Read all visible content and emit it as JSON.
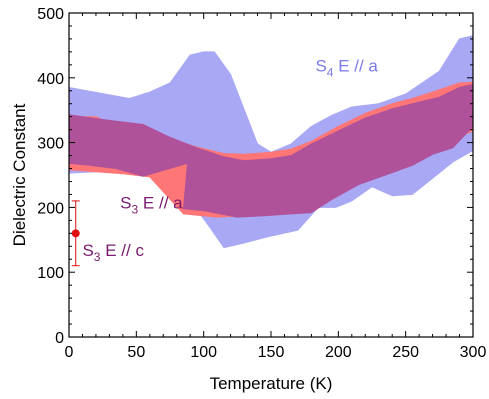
{
  "chart_data": {
    "type": "area",
    "title": "",
    "xlabel": "Temperature (K)",
    "ylabel": "Dielectric Constant",
    "xlim": [
      0,
      300
    ],
    "ylim": [
      0,
      500
    ],
    "xticks": [
      0,
      50,
      100,
      150,
      200,
      250,
      300
    ],
    "yticks": [
      0,
      100,
      200,
      300,
      400,
      500
    ],
    "grid": false,
    "legend": "none",
    "series": [
      {
        "color": "#a8a8f4",
        "label": {
          "main": "S",
          "sub": "4",
          "rest": " E // a",
          "x": 183,
          "y": 410,
          "color": "#7b7be8"
        },
        "upper": [
          [
            0,
            385
          ],
          [
            45,
            368
          ],
          [
            60,
            378
          ],
          [
            75,
            392
          ],
          [
            90,
            435
          ],
          [
            100,
            440
          ],
          [
            108,
            440
          ],
          [
            120,
            405
          ],
          [
            140,
            298
          ],
          [
            150,
            285
          ],
          [
            165,
            298
          ],
          [
            180,
            325
          ],
          [
            195,
            342
          ],
          [
            210,
            355
          ],
          [
            230,
            360
          ],
          [
            250,
            375
          ],
          [
            275,
            410
          ],
          [
            290,
            460
          ],
          [
            300,
            465
          ]
        ],
        "lower": [
          [
            300,
            288
          ],
          [
            285,
            270
          ],
          [
            270,
            245
          ],
          [
            255,
            220
          ],
          [
            240,
            218
          ],
          [
            225,
            232
          ],
          [
            210,
            210
          ],
          [
            198,
            200
          ],
          [
            185,
            200
          ],
          [
            170,
            165
          ],
          [
            148,
            155
          ],
          [
            130,
            145
          ],
          [
            115,
            138
          ],
          [
            105,
            168
          ],
          [
            92,
            205
          ],
          [
            80,
            235
          ],
          [
            60,
            250
          ],
          [
            40,
            258
          ],
          [
            20,
            255
          ],
          [
            0,
            253
          ]
        ]
      },
      {
        "color": "#ff7676",
        "label": null,
        "upper": [
          [
            0,
            340
          ],
          [
            20,
            340
          ],
          [
            35,
            325
          ],
          [
            55,
            325
          ],
          [
            75,
            305
          ],
          [
            95,
            293
          ],
          [
            115,
            283
          ],
          [
            130,
            282
          ],
          [
            150,
            285
          ],
          [
            165,
            290
          ],
          [
            180,
            302
          ],
          [
            200,
            325
          ],
          [
            220,
            345
          ],
          [
            240,
            360
          ],
          [
            255,
            368
          ],
          [
            270,
            378
          ],
          [
            290,
            392
          ],
          [
            300,
            393
          ]
        ],
        "lower": [
          [
            300,
            318
          ],
          [
            285,
            305
          ],
          [
            270,
            292
          ],
          [
            250,
            278
          ],
          [
            230,
            262
          ],
          [
            210,
            245
          ],
          [
            190,
            225
          ],
          [
            180,
            210
          ],
          [
            165,
            200
          ],
          [
            150,
            193
          ],
          [
            130,
            187
          ],
          [
            110,
            185
          ],
          [
            85,
            190
          ],
          [
            60,
            247
          ],
          [
            40,
            252
          ],
          [
            20,
            255
          ],
          [
            0,
            258
          ]
        ]
      },
      {
        "color": "#b0529a",
        "label": {
          "main": "S",
          "sub": "3",
          "rest": " E // a",
          "x": 38,
          "y": 198,
          "color": "#7a1a6e"
        },
        "upper": [
          [
            0,
            343
          ],
          [
            20,
            337
          ],
          [
            35,
            333
          ],
          [
            55,
            328
          ],
          [
            75,
            308
          ],
          [
            95,
            292
          ],
          [
            115,
            278
          ],
          [
            130,
            272
          ],
          [
            150,
            275
          ],
          [
            165,
            280
          ],
          [
            180,
            298
          ],
          [
            200,
            318
          ],
          [
            220,
            338
          ],
          [
            240,
            352
          ],
          [
            255,
            360
          ],
          [
            275,
            370
          ],
          [
            290,
            385
          ],
          [
            300,
            390
          ]
        ],
        "lower": [
          [
            300,
            325
          ],
          [
            285,
            292
          ],
          [
            270,
            282
          ],
          [
            255,
            265
          ],
          [
            235,
            250
          ],
          [
            215,
            235
          ],
          [
            195,
            212
          ],
          [
            180,
            192
          ],
          [
            165,
            190
          ],
          [
            145,
            187
          ],
          [
            125,
            185
          ],
          [
            100,
            195
          ],
          [
            85,
            198
          ],
          [
            88,
            268
          ],
          [
            55,
            248
          ],
          [
            35,
            260
          ],
          [
            15,
            265
          ],
          [
            0,
            268
          ]
        ]
      }
    ],
    "points": [
      {
        "x": 5,
        "y": 160,
        "yerr_low": 110,
        "yerr_high": 210,
        "color": "#e01010",
        "label": {
          "main": "S",
          "sub": "3",
          "rest": " E // c",
          "x": 10,
          "y": 125,
          "color": "#7a1a6e"
        }
      }
    ]
  }
}
